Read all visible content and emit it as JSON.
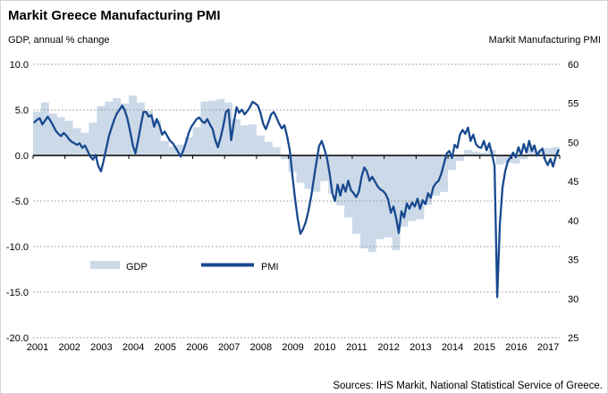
{
  "source": "Sources: IHS Markit, National Statistical Service of Greece.",
  "legend": {
    "gdp_label": "GDP",
    "pmi_label": "PMI"
  },
  "colors": {
    "gdp_area": "#ccd9e8",
    "pmi_line": "#17498f",
    "grid": "#8c8c8c",
    "axis": "#000000",
    "text": "#000000"
  },
  "chart_data": {
    "type": "line+area (dual axis)",
    "title": "Markit Greece Manufacturing PMI",
    "left_axis": {
      "caption": "GDP, annual % change",
      "min": -20,
      "max": 10,
      "ticks": [
        10,
        5,
        0,
        -5,
        -10,
        -15,
        -20
      ],
      "tick_format": "one-decimal"
    },
    "right_axis": {
      "caption": "Markit Manufacturing PMI",
      "min": 25,
      "max": 60,
      "ticks": [
        60,
        55,
        50,
        45,
        40,
        35,
        30,
        25
      ]
    },
    "x_axis": {
      "start": 2001.0,
      "end": 2017.5,
      "years": [
        "2001",
        "2002",
        "2003",
        "2004",
        "2005",
        "2006",
        "2007",
        "2008",
        "2009",
        "2010",
        "2011",
        "2012",
        "2013",
        "2014",
        "2015",
        "2016",
        "2017"
      ]
    },
    "grid": "dotted horizontal lines at left-axis ticks, solid black zero line",
    "legend_position": "inside lower-left",
    "series": [
      {
        "name": "GDP",
        "type": "stepped-area",
        "frequency": "quarterly",
        "start": "2001-Q1",
        "unit": "% annual change (left axis)",
        "values": [
          4.8,
          5.8,
          4.6,
          4.2,
          3.8,
          3.0,
          2.5,
          3.6,
          5.4,
          5.9,
          6.3,
          5.7,
          6.6,
          5.8,
          4.9,
          3.9,
          1.6,
          1.0,
          1.2,
          2.0,
          3.1,
          5.9,
          6.0,
          6.2,
          5.8,
          4.0,
          3.3,
          3.4,
          2.2,
          1.5,
          0.9,
          -0.4,
          -1.8,
          -3.0,
          -3.7,
          -4.0,
          -2.8,
          -4.2,
          -5.5,
          -6.8,
          -8.6,
          -10.2,
          -10.6,
          -9.2,
          -9.0,
          -10.4,
          -7.8,
          -7.2,
          -7.0,
          -5.4,
          -4.4,
          -4.0,
          -1.6,
          -0.6,
          0.6,
          0.4,
          0.3,
          0.6,
          -1.0,
          -0.8,
          -0.9,
          -0.4,
          1.2,
          0.6,
          0.8,
          0.9
        ]
      },
      {
        "name": "PMI",
        "type": "line",
        "frequency": "monthly",
        "start": "2001-01",
        "unit": "index (right axis)",
        "values": [
          52.6,
          52.9,
          53.1,
          52.3,
          52.8,
          53.3,
          52.8,
          52.2,
          51.5,
          51.1,
          50.8,
          51.2,
          50.9,
          50.4,
          50.1,
          49.9,
          49.7,
          49.9,
          49.3,
          49.6,
          48.9,
          48.2,
          47.8,
          48.4,
          47.0,
          46.3,
          47.6,
          49.2,
          50.8,
          51.9,
          52.9,
          53.7,
          54.2,
          54.7,
          54.1,
          53.0,
          51.4,
          49.6,
          48.6,
          50.3,
          52.2,
          53.9,
          53.9,
          53.3,
          53.5,
          52.0,
          53.0,
          52.2,
          51.0,
          51.4,
          50.8,
          50.2,
          49.9,
          49.4,
          48.8,
          48.2,
          49.0,
          50.0,
          51.2,
          52.0,
          52.5,
          53.0,
          53.2,
          52.7,
          52.5,
          53.0,
          52.3,
          51.7,
          50.3,
          49.4,
          50.6,
          52.1,
          53.9,
          54.2,
          50.3,
          52.6,
          54.5,
          53.8,
          54.2,
          53.6,
          54.0,
          54.5,
          55.2,
          55.0,
          54.7,
          53.8,
          52.4,
          51.7,
          52.6,
          53.6,
          53.9,
          53.2,
          52.4,
          51.8,
          52.2,
          50.8,
          49.0,
          45.8,
          42.8,
          40.2,
          38.3,
          38.9,
          39.8,
          41.2,
          43.0,
          45.2,
          47.4,
          49.5,
          50.2,
          49.2,
          48.0,
          46.0,
          43.5,
          42.5,
          44.6,
          43.2,
          44.6,
          43.7,
          45.1,
          43.9,
          43.5,
          43.0,
          43.7,
          45.6,
          46.8,
          46.3,
          45.1,
          45.6,
          45.0,
          44.4,
          44.0,
          43.8,
          43.4,
          42.7,
          41.0,
          41.8,
          40.3,
          38.4,
          41.2,
          40.4,
          42.2,
          41.5,
          42.3,
          41.8,
          42.8,
          41.5,
          42.6,
          42.1,
          43.5,
          42.9,
          44.3,
          44.8,
          45.1,
          46.0,
          47.3,
          48.6,
          48.9,
          48.0,
          49.7,
          49.3,
          51.0,
          51.6,
          51.1,
          51.9,
          50.2,
          51.0,
          49.8,
          49.4,
          49.3,
          50.2,
          49.0,
          49.9,
          48.6,
          47.0,
          30.2,
          39.6,
          44.2,
          46.3,
          47.6,
          48.1,
          48.7,
          48.1,
          49.4,
          48.4,
          49.8,
          48.7,
          50.2,
          48.9,
          49.6,
          48.3,
          48.9,
          49.2,
          47.8,
          47.1,
          47.9,
          46.9,
          48.2,
          49.0
        ]
      }
    ]
  }
}
